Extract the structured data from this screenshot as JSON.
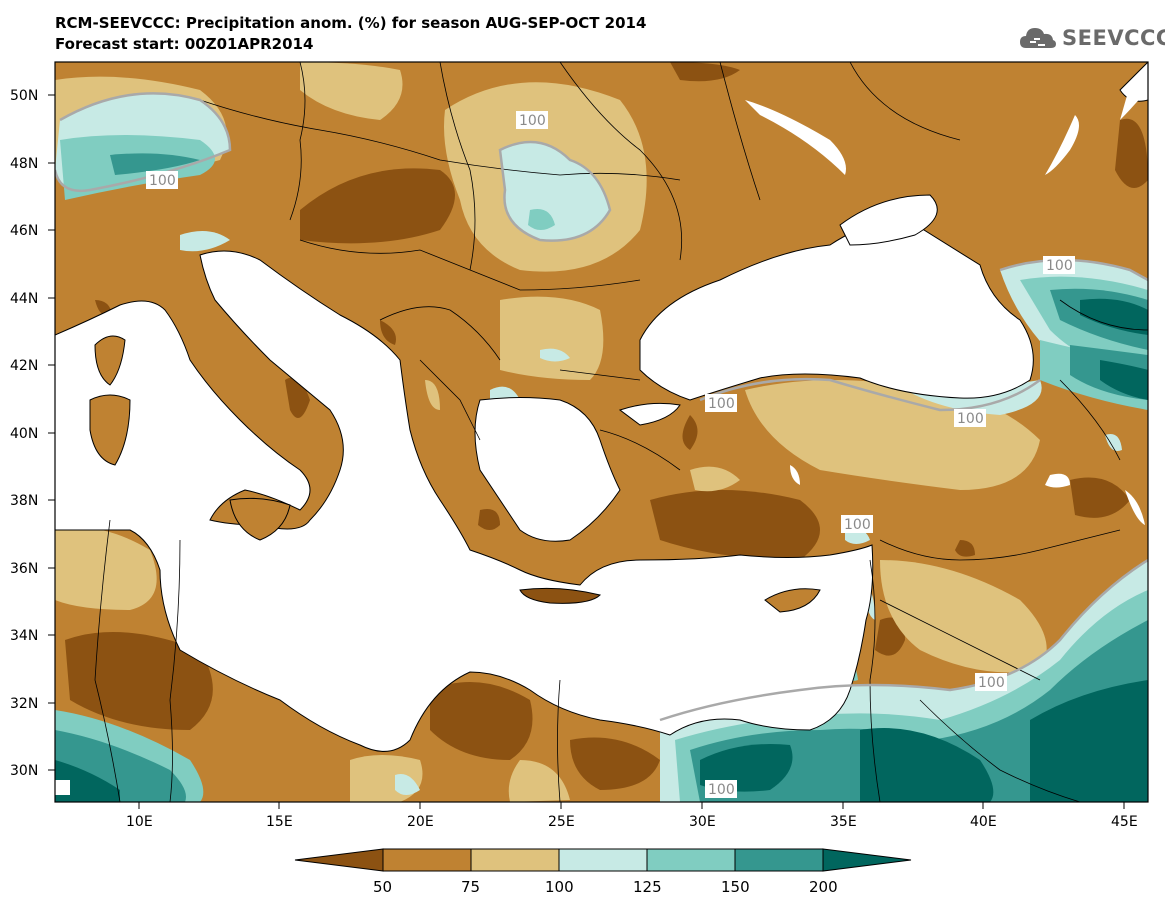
{
  "title": {
    "line1": "RCM-SEEVCCC: Precipitation anom. (%) for season AUG-SEP-OCT 2014",
    "line2": "Forecast start: 00Z01APR2014"
  },
  "logo": {
    "text": "SEEVCCC",
    "icon": "cloud-icon"
  },
  "map": {
    "lat_ticks": [
      "30N",
      "32N",
      "34N",
      "36N",
      "38N",
      "40N",
      "42N",
      "44N",
      "46N",
      "48N",
      "50N"
    ],
    "lon_ticks": [
      "10E",
      "15E",
      "20E",
      "25E",
      "30E",
      "35E",
      "40E",
      "45E"
    ],
    "contour_labels": [
      "100",
      "100",
      "100",
      "100",
      "100",
      "100",
      "100",
      "100"
    ],
    "colors": {
      "lt50": "#8c5212",
      "50_75": "#bf8232",
      "75_100": "#dfc27d",
      "100_125": "#c7eae5",
      "125_150": "#80cdc1",
      "150_200": "#35978f",
      "gt200": "#01665e",
      "sea": "#ffffff"
    }
  },
  "colorbar": {
    "labels": [
      "50",
      "75",
      "100",
      "125",
      "150",
      "200"
    ],
    "colors": [
      "#8c5212",
      "#bf8232",
      "#dfc27d",
      "#c7eae5",
      "#80cdc1",
      "#35978f",
      "#01665e"
    ]
  }
}
